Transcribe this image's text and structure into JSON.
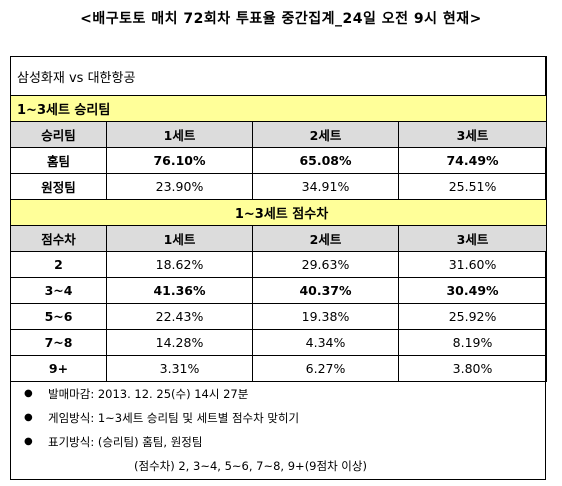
{
  "title": "<배구토토 매치 72회차 투표율 중간집계_24일 오전 9시 현재>",
  "match": "삼성화재 vs 대한항공",
  "section1": {
    "title": "1~3세트 승리팀",
    "headers": [
      "승리팀",
      "1세트",
      "2세트",
      "3세트"
    ],
    "rows": [
      {
        "label": "홈팀",
        "values": [
          "76.10%",
          "65.08%",
          "74.49%"
        ]
      },
      {
        "label": "원정팀",
        "values": [
          "23.90%",
          "34.91%",
          "25.51%"
        ]
      }
    ]
  },
  "section2": {
    "title": "1~3세트 점수차",
    "headers": [
      "점수차",
      "1세트",
      "2세트",
      "3세트"
    ],
    "rows": [
      {
        "label": "2",
        "values": [
          "18.62%",
          "29.63%",
          "31.60%"
        ]
      },
      {
        "label": "3~4",
        "values": [
          "41.36%",
          "40.37%",
          "30.49%"
        ]
      },
      {
        "label": "5~6",
        "values": [
          "22.43%",
          "19.38%",
          "25.92%"
        ]
      },
      {
        "label": "7~8",
        "values": [
          "14.28%",
          "4.34%",
          "8.19%"
        ]
      },
      {
        "label": "9+",
        "values": [
          "3.31%",
          "6.27%",
          "3.80%"
        ]
      }
    ]
  },
  "notes": {
    "bullet": "●",
    "deadline": "발매마감: 2013. 12. 25(수) 14시 27분",
    "method": "게임방식: 1~3세트 승리팀 및 세트별 점수차 맞히기",
    "notation": "표기방식: (승리팀) 홈팀, 원정팀",
    "notation2": "(점수차) 2, 3~4, 5~6, 7~8, 9+(9점차 이상)"
  }
}
